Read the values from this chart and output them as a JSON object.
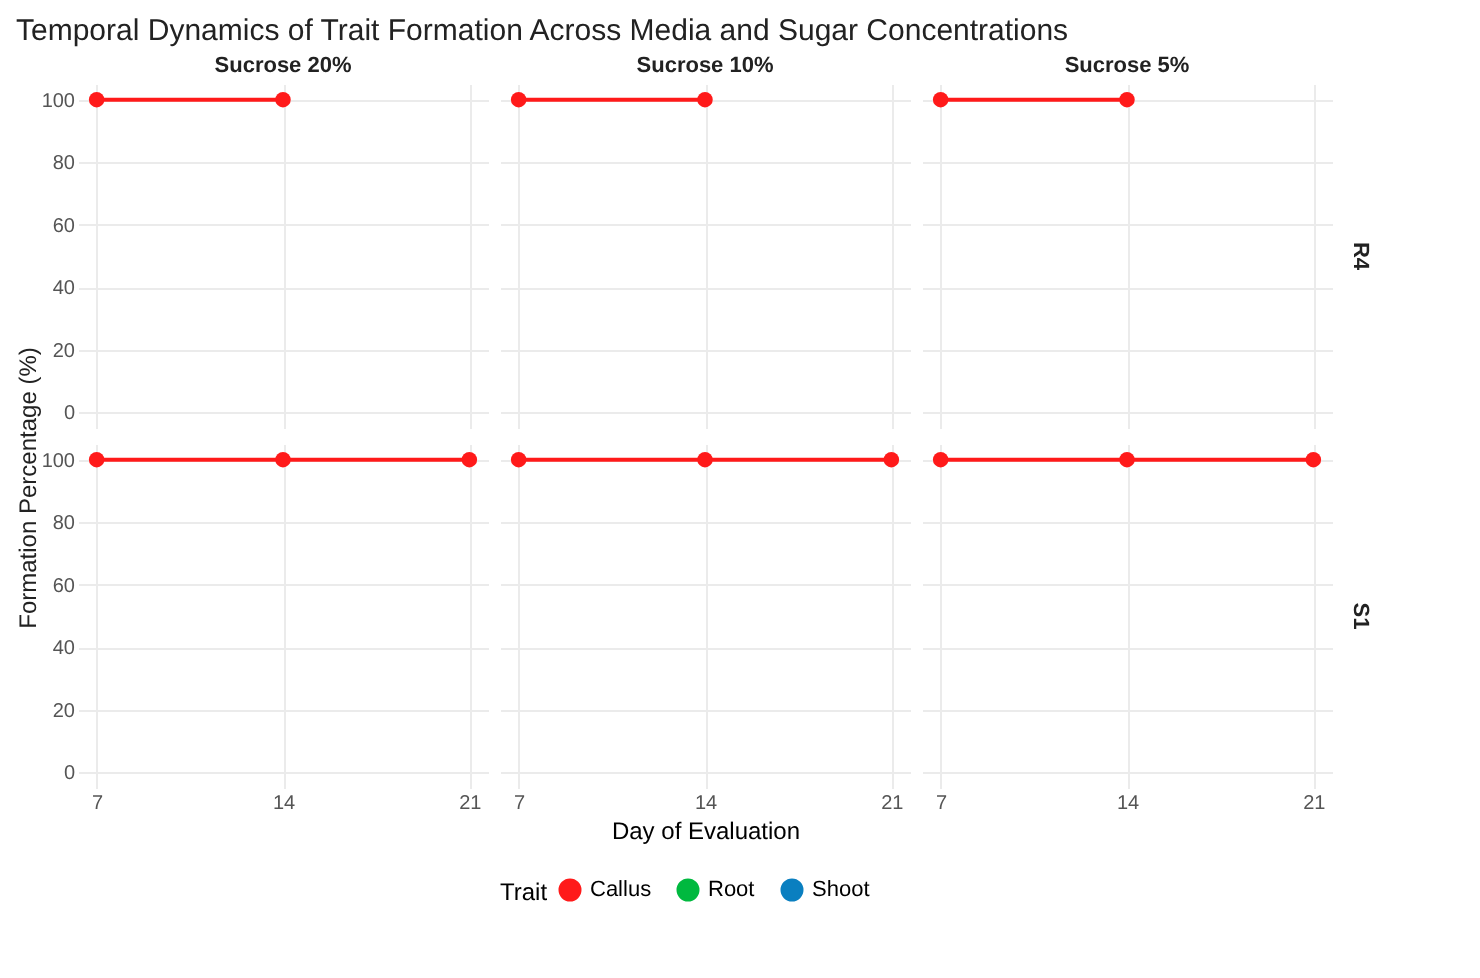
{
  "chart_data": [
    {
      "type": "line",
      "title": "Temporal Dynamics of Trait Formation Across Media and Sugar Concentrations",
      "subtitle": "Sucrose 20%",
      "ylabel": "Formation Percentage (%)",
      "x": [
        7,
        14
      ],
      "xlim": [
        6.3,
        21.7
      ],
      "xticks": [
        7,
        14,
        21
      ],
      "ylim": [
        -5,
        105
      ],
      "yticks": [
        0,
        20,
        40,
        60,
        80,
        100
      ],
      "grid": true,
      "marker": "circle",
      "line_style": "solid",
      "tick_labels": "y",
      "series": [
        {
          "color": "#ff1a1a",
          "values": [
            100,
            100
          ]
        }
      ]
    },
    {
      "type": "line",
      "subtitle": "Sucrose 10%",
      "x": [
        7,
        14
      ],
      "xlim": [
        6.3,
        21.7
      ],
      "xticks": [
        7,
        14,
        21
      ],
      "ylim": [
        -5,
        105
      ],
      "yticks": [
        0,
        20,
        40,
        60,
        80,
        100
      ],
      "grid": true,
      "marker": "circle",
      "line_style": "solid",
      "tick_labels": false,
      "series": [
        {
          "color": "#ff1a1a",
          "values": [
            100,
            100
          ]
        }
      ]
    },
    {
      "type": "line",
      "subtitle": "Sucrose 5%",
      "y2label": "R4",
      "x": [
        7,
        14
      ],
      "xlim": [
        6.3,
        21.7
      ],
      "xticks": [
        7,
        14,
        21
      ],
      "ylim": [
        -5,
        105
      ],
      "yticks": [
        0,
        20,
        40,
        60,
        80,
        100
      ],
      "grid": true,
      "marker": "circle",
      "line_style": "solid",
      "tick_labels": false,
      "series": [
        {
          "color": "#ff1a1a",
          "values": [
            100,
            100
          ]
        }
      ]
    },
    {
      "type": "line",
      "x": [
        7,
        14,
        21
      ],
      "xlim": [
        6.3,
        21.7
      ],
      "xticks": [
        7,
        14,
        21
      ],
      "ylim": [
        -5,
        105
      ],
      "yticks": [
        0,
        20,
        40,
        60,
        80,
        100
      ],
      "grid": true,
      "marker": "circle",
      "line_style": "solid",
      "series": [
        {
          "color": "#ff1a1a",
          "values": [
            100,
            100,
            100
          ]
        }
      ]
    },
    {
      "type": "line",
      "xlabel": "Day of Evaluation",
      "legend_title": "Trait",
      "legend": "bottom",
      "x": [
        7,
        14,
        21
      ],
      "xlim": [
        6.3,
        21.7
      ],
      "xticks": [
        7,
        14,
        21
      ],
      "ylim": [
        -5,
        105
      ],
      "yticks": [
        0,
        20,
        40,
        60,
        80,
        100
      ],
      "grid": true,
      "marker": "circle",
      "line_style": "solid",
      "tick_labels": "x",
      "series": [
        {
          "name": "Callus",
          "color": "#ff1a1a",
          "values": [
            100,
            100,
            100
          ]
        },
        {
          "name": "Root",
          "color": "#00b93f",
          "values": [
            null,
            null,
            null
          ]
        },
        {
          "name": "Shoot",
          "color": "#0a7fc0",
          "values": [
            null,
            null,
            null
          ]
        }
      ]
    },
    {
      "type": "line",
      "y2label": "S1",
      "x": [
        7,
        14,
        21
      ],
      "xlim": [
        6.3,
        21.7
      ],
      "xticks": [
        7,
        14,
        21
      ],
      "ylim": [
        -5,
        105
      ],
      "yticks": [
        0,
        20,
        40,
        60,
        80,
        100
      ],
      "grid": true,
      "marker": "circle",
      "line_style": "solid",
      "tick_labels": "x",
      "series": [
        {
          "color": "#ff1a1a",
          "values": [
            100,
            100,
            100
          ]
        }
      ]
    }
  ]
}
